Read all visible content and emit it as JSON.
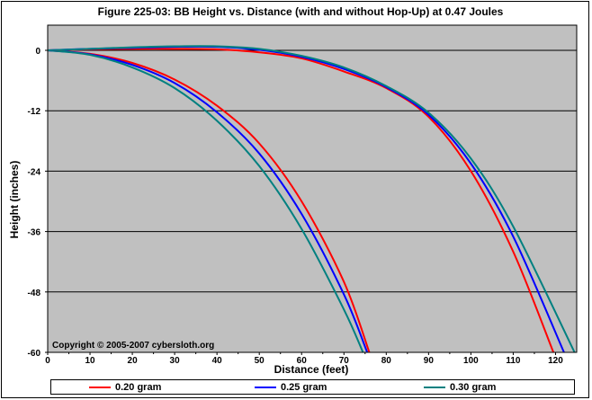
{
  "chart_data": {
    "type": "line",
    "title": "Figure 225-03:  BB Height vs. Distance (with and without Hop-Up) at 0.47 Joules",
    "xlabel": "Distance (feet)",
    "ylabel": "Height (inches)",
    "xlim": [
      0,
      125
    ],
    "ylim": [
      -60,
      5
    ],
    "xticks": [
      0,
      10,
      20,
      30,
      40,
      50,
      60,
      70,
      80,
      90,
      100,
      110,
      120
    ],
    "yticks": [
      0,
      -12,
      -24,
      -36,
      -48,
      -60
    ],
    "grid": "horizontal",
    "legend_position": "bottom",
    "annotation": "Copyright © 2005-2007 cybersloth.org",
    "colors": {
      "plot_bg": "#c0c0c0",
      "red": "#ff0000",
      "blue": "#0000ff",
      "teal": "#008080"
    },
    "legend": [
      {
        "label": "0.20 gram",
        "color": "#ff0000"
      },
      {
        "label": "0.25 gram",
        "color": "#0000ff"
      },
      {
        "label": "0.30 gram",
        "color": "#008080"
      }
    ],
    "series": [
      {
        "color": "#ff0000",
        "group": "no-hop",
        "x": [
          0,
          10,
          20,
          30,
          40,
          50,
          60,
          70,
          76
        ],
        "y": [
          0,
          -0.7,
          -2.5,
          -5.8,
          -11,
          -18.5,
          -30,
          -46,
          -60
        ]
      },
      {
        "color": "#0000ff",
        "group": "no-hop",
        "x": [
          0,
          10,
          20,
          30,
          40,
          50,
          60,
          70,
          75.5
        ],
        "y": [
          0,
          -0.8,
          -2.9,
          -6.5,
          -12.3,
          -20.5,
          -32.5,
          -48.5,
          -60
        ]
      },
      {
        "color": "#008080",
        "group": "no-hop",
        "x": [
          0,
          10,
          20,
          30,
          40,
          50,
          60,
          70,
          74.5
        ],
        "y": [
          0,
          -0.9,
          -3.4,
          -7.5,
          -14,
          -23,
          -35.5,
          -51.5,
          -60
        ]
      },
      {
        "color": "#ff0000",
        "group": "hop-up",
        "x": [
          0,
          10,
          20,
          30,
          40,
          50,
          60,
          70,
          80,
          90,
          100,
          110,
          119.5
        ],
        "y": [
          0,
          0.2,
          0.3,
          0.3,
          0.2,
          -0.4,
          -1.6,
          -4.2,
          -7.5,
          -13.2,
          -24,
          -40,
          -60
        ]
      },
      {
        "color": "#0000ff",
        "group": "hop-up",
        "x": [
          0,
          10,
          20,
          30,
          40,
          50,
          60,
          70,
          80,
          90,
          100,
          110,
          122
        ],
        "y": [
          0,
          0.3,
          0.5,
          0.7,
          0.7,
          0.1,
          -1.3,
          -3.7,
          -7.3,
          -12.8,
          -22.5,
          -37,
          -60
        ]
      },
      {
        "color": "#008080",
        "group": "hop-up",
        "x": [
          0,
          10,
          20,
          30,
          40,
          50,
          60,
          70,
          80,
          90,
          100,
          110,
          124.5
        ],
        "y": [
          0,
          0.3,
          0.6,
          0.8,
          0.8,
          0.3,
          -1.1,
          -3.4,
          -7.1,
          -12.4,
          -21.5,
          -35,
          -60
        ]
      }
    ]
  }
}
